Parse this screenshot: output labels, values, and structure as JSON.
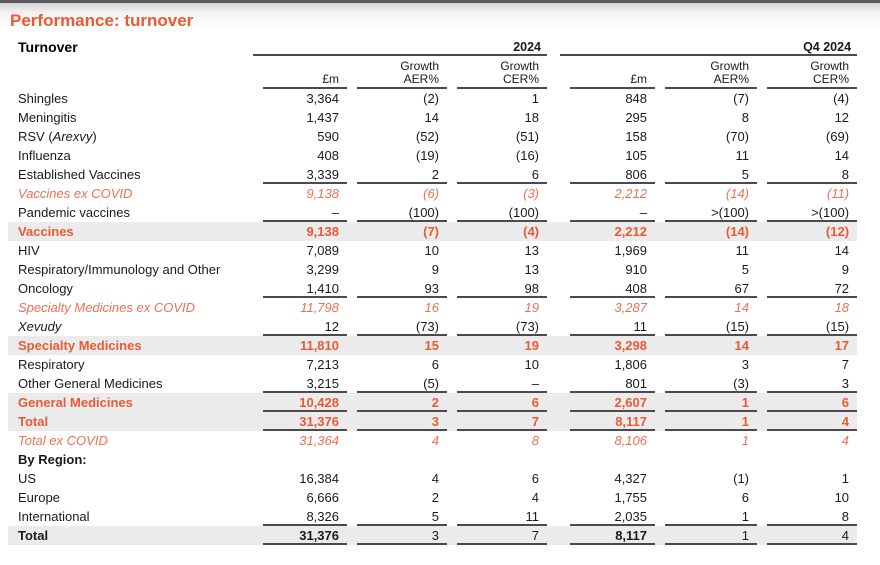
{
  "page": {
    "title": "Performance: turnover",
    "section_heading": "Turnover"
  },
  "colors": {
    "accent_orange": "#EA5A33",
    "accent_orange_italic": "#EC7153",
    "highlight_row_bg": "#EBEBEB",
    "rule_line": "#4B4B4D",
    "top_strip": "#59595B"
  },
  "table": {
    "groups": [
      {
        "period": "2024",
        "cols": [
          {
            "l1": "£m",
            "l2": ""
          },
          {
            "l1": "Growth",
            "l2": "AER%"
          },
          {
            "l1": "Growth",
            "l2": "CER%"
          }
        ]
      },
      {
        "period": "Q4 2024",
        "cols": [
          {
            "l1": "£m",
            "l2": ""
          },
          {
            "l1": "Growth",
            "l2": "AER%"
          },
          {
            "l1": "Growth",
            "l2": "CER%"
          }
        ]
      }
    ],
    "rows": [
      {
        "label": "Shingles",
        "values": [
          "3,364",
          "(2)",
          "1",
          "848",
          "(7)",
          "(4)"
        ]
      },
      {
        "label": "Meningitis",
        "values": [
          "1,437",
          "14",
          "18",
          "295",
          "8",
          "12"
        ]
      },
      {
        "label": "RSV (Arexvy)",
        "label_parts": [
          {
            "text": "RSV ("
          },
          {
            "text": "Arexvy",
            "italic": true
          },
          {
            "text": ")"
          }
        ],
        "values": [
          "590",
          "(52)",
          "(51)",
          "158",
          "(70)",
          "(69)"
        ]
      },
      {
        "label": "Influenza",
        "values": [
          "408",
          "(19)",
          "(16)",
          "105",
          "11",
          "14"
        ]
      },
      {
        "label": "Established Vaccines",
        "u": true,
        "values": [
          "3,339",
          "2",
          "6",
          "806",
          "5",
          "8"
        ]
      },
      {
        "label": "Vaccines ex COVID",
        "style": "oi",
        "values": [
          "9,138",
          "(6)",
          "(3)",
          "2,212",
          "(14)",
          "(11)"
        ]
      },
      {
        "label": "Pandemic vaccines",
        "u": true,
        "values": [
          "–",
          "(100)",
          "(100)",
          "–",
          ">(100)",
          ">(100)"
        ]
      },
      {
        "label": "Vaccines",
        "style": "obh",
        "values": [
          "9,138",
          "(7)",
          "(4)",
          "2,212",
          "(14)",
          "(12)"
        ]
      },
      {
        "label": "HIV",
        "values": [
          "7,089",
          "10",
          "13",
          "1,969",
          "11",
          "14"
        ]
      },
      {
        "label": "Respiratory/Immunology and Other",
        "values": [
          "3,299",
          "9",
          "13",
          "910",
          "5",
          "9"
        ]
      },
      {
        "label": "Oncology",
        "u": true,
        "values": [
          "1,410",
          "93",
          "98",
          "408",
          "67",
          "72"
        ]
      },
      {
        "label": "Specialty Medicines ex COVID",
        "style": "oi",
        "values": [
          "11,798",
          "16",
          "19",
          "3,287",
          "14",
          "18"
        ]
      },
      {
        "label": "Xevudy",
        "label_italic": true,
        "u": true,
        "values": [
          "12",
          "(73)",
          "(73)",
          "11",
          "(15)",
          "(15)"
        ]
      },
      {
        "label": "Specialty Medicines",
        "style": "obh",
        "values": [
          "11,810",
          "15",
          "19",
          "3,298",
          "14",
          "17"
        ]
      },
      {
        "label": "Respiratory",
        "values": [
          "7,213",
          "6",
          "10",
          "1,806",
          "3",
          "7"
        ]
      },
      {
        "label": "Other General Medicines",
        "u": true,
        "values": [
          "3,215",
          "(5)",
          "–",
          "801",
          "(3)",
          "3"
        ]
      },
      {
        "label": "General Medicines",
        "style": "obh",
        "u": true,
        "values": [
          "10,428",
          "2",
          "6",
          "2,607",
          "1",
          "6"
        ]
      },
      {
        "label": "Total",
        "style": "obh",
        "u": true,
        "values": [
          "31,376",
          "3",
          "7",
          "8,117",
          "1",
          "4"
        ]
      },
      {
        "label": "Total ex COVID",
        "style": "oi",
        "values": [
          "31,364",
          "4",
          "8",
          "8,106",
          "1",
          "4"
        ]
      },
      {
        "label": "By Region:",
        "style": "sec",
        "values": [
          "",
          "",
          "",
          "",
          "",
          ""
        ]
      },
      {
        "label": "US",
        "values": [
          "16,384",
          "4",
          "6",
          "4,327",
          "(1)",
          "1"
        ]
      },
      {
        "label": "Europe",
        "values": [
          "6,666",
          "2",
          "4",
          "1,755",
          "6",
          "10"
        ]
      },
      {
        "label": "International",
        "u": true,
        "values": [
          "8,326",
          "5",
          "11",
          "2,035",
          "1",
          "8"
        ]
      },
      {
        "label": "Total",
        "style": "bbh",
        "u": true,
        "values": [
          "31,376",
          "3",
          "7",
          "8,117",
          "1",
          "4"
        ]
      }
    ]
  }
}
